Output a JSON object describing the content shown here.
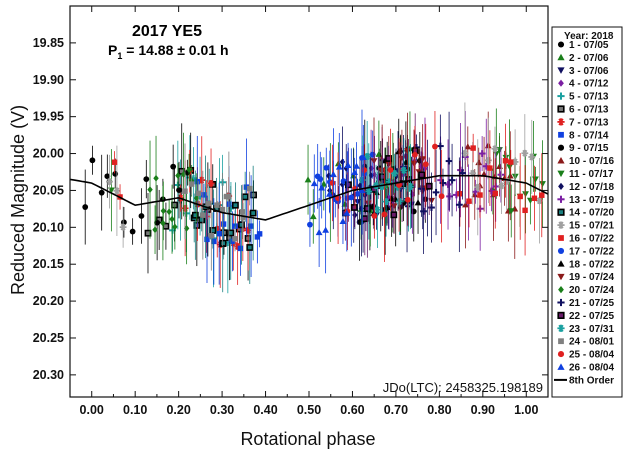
{
  "chart_data": {
    "type": "scatter",
    "title": "2017 YE5",
    "subtitle_prefix": "P",
    "subtitle_sub": "1",
    "subtitle_rest": " = 14.88 ± 0.01 h",
    "xlabel": "Rotational phase",
    "ylabel": "Reduced Magnitude (V)",
    "xlim": [
      -0.05,
      1.05
    ],
    "ylim": [
      19.8,
      20.33
    ],
    "y_inverted": true,
    "x_ticks": [
      "0.00",
      "0.10",
      "0.20",
      "0.30",
      "0.40",
      "0.50",
      "0.60",
      "0.70",
      "0.80",
      "0.90",
      "1.00"
    ],
    "y_ticks": [
      "19.85",
      "19.90",
      "19.95",
      "20.00",
      "20.05",
      "20.10",
      "20.15",
      "20.20",
      "20.25",
      "20.30"
    ],
    "annotation": "JDo(LTC): 2458325.198189",
    "legend_title": "Year: 2018",
    "legend_placement": "right-outside",
    "series": [
      {
        "name": "1 - 07/05",
        "color": "#000000",
        "marker": "circle"
      },
      {
        "name": "2 - 07/06",
        "color": "#1a7f1a",
        "marker": "triangle-up"
      },
      {
        "name": "3 - 07/06",
        "color": "#101060",
        "marker": "triangle-down"
      },
      {
        "name": "4 - 07/12",
        "color": "#7b1fa2",
        "marker": "diamond"
      },
      {
        "name": "5 - 07/13",
        "color": "#1aa0a0",
        "marker": "plus"
      },
      {
        "name": "6 - 07/13",
        "color": "#000000",
        "marker": "square-open"
      },
      {
        "name": "7 - 07/13",
        "color": "#e02020",
        "marker": "asterisk"
      },
      {
        "name": "8 - 07/14",
        "color": "#1040e0",
        "marker": "square"
      },
      {
        "name": "9 - 07/15",
        "color": "#000000",
        "marker": "circle"
      },
      {
        "name": "10 - 07/16",
        "color": "#8b1a1a",
        "marker": "triangle-up"
      },
      {
        "name": "11 - 07/17",
        "color": "#1a7f1a",
        "marker": "triangle-down"
      },
      {
        "name": "12 - 07/18",
        "color": "#101060",
        "marker": "diamond"
      },
      {
        "name": "13 - 07/19",
        "color": "#7b1fa2",
        "marker": "plus"
      },
      {
        "name": "14 - 07/20",
        "color": "#1a8080",
        "marker": "square-open"
      },
      {
        "name": "15 - 07/21",
        "color": "#a0a0a0",
        "marker": "asterisk"
      },
      {
        "name": "16 - 07/22",
        "color": "#e02020",
        "marker": "square"
      },
      {
        "name": "17 - 07/22",
        "color": "#1040e0",
        "marker": "circle"
      },
      {
        "name": "18 - 07/22",
        "color": "#000000",
        "marker": "triangle-up"
      },
      {
        "name": "19 - 07/24",
        "color": "#8b1a1a",
        "marker": "triangle-down"
      },
      {
        "name": "20 - 07/24",
        "color": "#1a7f1a",
        "marker": "diamond"
      },
      {
        "name": "21 - 07/25",
        "color": "#101060",
        "marker": "plus"
      },
      {
        "name": "22 - 07/25",
        "color": "#6a1b6a",
        "marker": "square-open"
      },
      {
        "name": "23 - 07/31",
        "color": "#1aa0a0",
        "marker": "asterisk"
      },
      {
        "name": "24 - 08/01",
        "color": "#808080",
        "marker": "square"
      },
      {
        "name": "25 - 08/04",
        "color": "#e02020",
        "marker": "circle"
      },
      {
        "name": "26 - 08/04",
        "color": "#1040e0",
        "marker": "triangle-up"
      }
    ],
    "fit": {
      "name": "8th Order",
      "color": "#000000",
      "phase": [
        0.0,
        0.1,
        0.2,
        0.3,
        0.4,
        0.5,
        0.6,
        0.7,
        0.8,
        0.9,
        1.0
      ],
      "mag": [
        20.04,
        20.07,
        20.06,
        20.08,
        20.09,
        20.07,
        20.05,
        20.04,
        20.03,
        20.03,
        20.04
      ]
    }
  }
}
